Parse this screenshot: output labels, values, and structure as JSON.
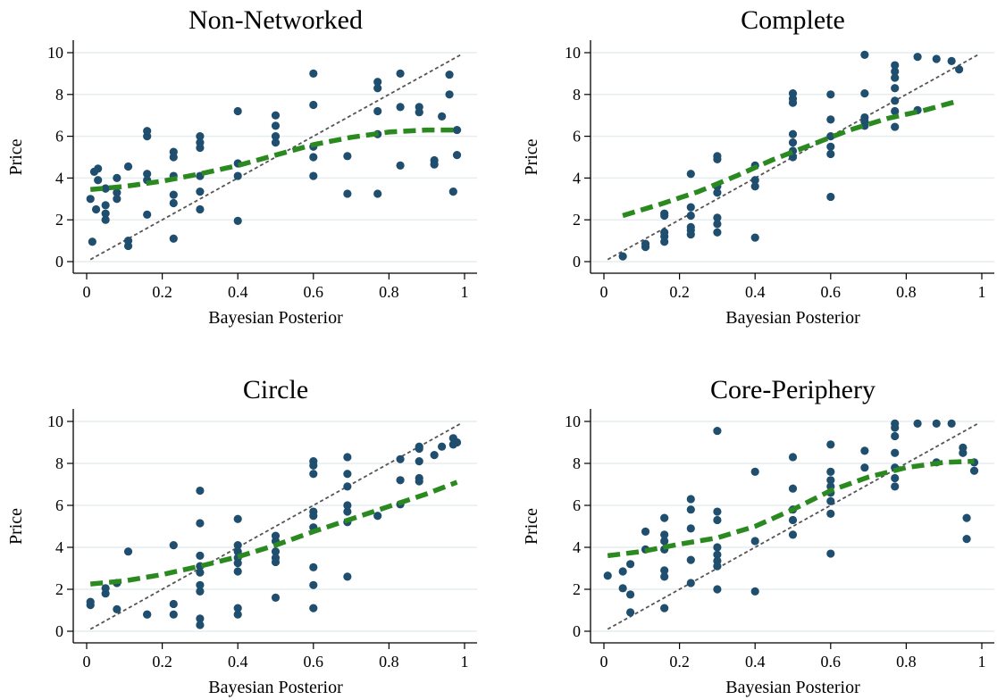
{
  "colors": {
    "points": "#1f4e6e",
    "fit": "#2a8a1f",
    "diagonal": "#555555",
    "grid": "#e6eef0",
    "axis": "#000000"
  },
  "chart_data": [
    {
      "type": "scatter",
      "title": "Non-Networked",
      "xlabel": "Bayesian Posterior",
      "ylabel": "Price",
      "xlim": [
        0,
        1
      ],
      "ylim": [
        0,
        10
      ],
      "xticks": [
        "0",
        "0.2",
        "0.4",
        "0.6",
        "0.8",
        "1"
      ],
      "yticks": [
        "0",
        "2",
        "4",
        "6",
        "8",
        "10"
      ],
      "grid": true,
      "points": [
        [
          0.01,
          3.0
        ],
        [
          0.015,
          0.95
        ],
        [
          0.02,
          4.3
        ],
        [
          0.025,
          2.5
        ],
        [
          0.03,
          4.45
        ],
        [
          0.03,
          3.9
        ],
        [
          0.05,
          2.0
        ],
        [
          0.05,
          2.3
        ],
        [
          0.05,
          2.7
        ],
        [
          0.05,
          3.5
        ],
        [
          0.05,
          3.5
        ],
        [
          0.08,
          3.0
        ],
        [
          0.08,
          3.3
        ],
        [
          0.08,
          4.0
        ],
        [
          0.11,
          0.75
        ],
        [
          0.11,
          1.0
        ],
        [
          0.11,
          4.55
        ],
        [
          0.16,
          6.0
        ],
        [
          0.16,
          6.25
        ],
        [
          0.16,
          4.2
        ],
        [
          0.16,
          3.9
        ],
        [
          0.16,
          2.25
        ],
        [
          0.23,
          5.0
        ],
        [
          0.23,
          5.25
        ],
        [
          0.23,
          4.1
        ],
        [
          0.23,
          3.2
        ],
        [
          0.23,
          2.8
        ],
        [
          0.23,
          1.1
        ],
        [
          0.3,
          6.0
        ],
        [
          0.3,
          5.7
        ],
        [
          0.3,
          5.45
        ],
        [
          0.3,
          4.1
        ],
        [
          0.3,
          3.35
        ],
        [
          0.3,
          2.5
        ],
        [
          0.4,
          7.2
        ],
        [
          0.4,
          4.7
        ],
        [
          0.4,
          4.1
        ],
        [
          0.4,
          1.95
        ],
        [
          0.5,
          7.0
        ],
        [
          0.5,
          6.5
        ],
        [
          0.5,
          6.0
        ],
        [
          0.5,
          5.7
        ],
        [
          0.6,
          9.0
        ],
        [
          0.6,
          7.5
        ],
        [
          0.6,
          5.5
        ],
        [
          0.6,
          5.0
        ],
        [
          0.6,
          4.1
        ],
        [
          0.69,
          5.05
        ],
        [
          0.69,
          3.25
        ],
        [
          0.77,
          8.6
        ],
        [
          0.77,
          8.3
        ],
        [
          0.77,
          7.2
        ],
        [
          0.77,
          6.1
        ],
        [
          0.77,
          3.25
        ],
        [
          0.83,
          9.0
        ],
        [
          0.83,
          7.4
        ],
        [
          0.83,
          4.6
        ],
        [
          0.88,
          7.4
        ],
        [
          0.88,
          7.15
        ],
        [
          0.92,
          4.85
        ],
        [
          0.92,
          4.65
        ],
        [
          0.94,
          6.95
        ],
        [
          0.96,
          8.95
        ],
        [
          0.96,
          8.0
        ],
        [
          0.97,
          3.35
        ],
        [
          0.98,
          6.3
        ],
        [
          0.98,
          5.1
        ]
      ],
      "fit": [
        [
          0.01,
          3.45
        ],
        [
          0.1,
          3.6
        ],
        [
          0.2,
          3.85
        ],
        [
          0.3,
          4.2
        ],
        [
          0.4,
          4.6
        ],
        [
          0.5,
          5.1
        ],
        [
          0.6,
          5.6
        ],
        [
          0.7,
          5.95
        ],
        [
          0.8,
          6.2
        ],
        [
          0.9,
          6.3
        ],
        [
          0.98,
          6.3
        ]
      ],
      "diagonal": [
        [
          0.01,
          0.1
        ],
        [
          0.99,
          9.9
        ]
      ]
    },
    {
      "type": "scatter",
      "title": "Complete",
      "xlabel": "Bayesian Posterior",
      "ylabel": "Price",
      "xlim": [
        0,
        1
      ],
      "ylim": [
        0,
        10
      ],
      "xticks": [
        "0",
        "0.2",
        "0.4",
        "0.6",
        "0.8",
        "1"
      ],
      "yticks": [
        "0",
        "2",
        "4",
        "6",
        "8",
        "10"
      ],
      "grid": true,
      "points": [
        [
          0.05,
          0.25
        ],
        [
          0.11,
          0.7
        ],
        [
          0.11,
          0.85
        ],
        [
          0.16,
          0.95
        ],
        [
          0.16,
          1.2
        ],
        [
          0.16,
          1.4
        ],
        [
          0.16,
          2.2
        ],
        [
          0.16,
          2.3
        ],
        [
          0.23,
          1.3
        ],
        [
          0.23,
          1.5
        ],
        [
          0.23,
          1.65
        ],
        [
          0.23,
          2.2
        ],
        [
          0.23,
          2.6
        ],
        [
          0.23,
          4.2
        ],
        [
          0.3,
          1.4
        ],
        [
          0.3,
          1.8
        ],
        [
          0.3,
          2.1
        ],
        [
          0.3,
          3.3
        ],
        [
          0.3,
          3.6
        ],
        [
          0.3,
          4.9
        ],
        [
          0.3,
          5.05
        ],
        [
          0.4,
          1.15
        ],
        [
          0.4,
          3.6
        ],
        [
          0.4,
          3.9
        ],
        [
          0.4,
          4.6
        ],
        [
          0.5,
          8.05
        ],
        [
          0.5,
          7.8
        ],
        [
          0.5,
          7.6
        ],
        [
          0.5,
          6.1
        ],
        [
          0.5,
          5.7
        ],
        [
          0.5,
          5.3
        ],
        [
          0.5,
          5.0
        ],
        [
          0.6,
          8.0
        ],
        [
          0.6,
          6.8
        ],
        [
          0.6,
          6.0
        ],
        [
          0.6,
          5.5
        ],
        [
          0.6,
          5.15
        ],
        [
          0.6,
          3.1
        ],
        [
          0.69,
          9.9
        ],
        [
          0.69,
          8.05
        ],
        [
          0.69,
          6.9
        ],
        [
          0.69,
          6.7
        ],
        [
          0.69,
          6.5
        ],
        [
          0.77,
          9.4
        ],
        [
          0.77,
          9.1
        ],
        [
          0.77,
          8.8
        ],
        [
          0.77,
          8.3
        ],
        [
          0.77,
          7.7
        ],
        [
          0.77,
          7.2
        ],
        [
          0.77,
          6.45
        ],
        [
          0.83,
          9.8
        ],
        [
          0.83,
          7.25
        ],
        [
          0.88,
          9.7
        ],
        [
          0.92,
          9.6
        ],
        [
          0.94,
          9.2
        ]
      ],
      "fit": [
        [
          0.05,
          2.2
        ],
        [
          0.15,
          2.75
        ],
        [
          0.25,
          3.35
        ],
        [
          0.35,
          4.1
        ],
        [
          0.45,
          4.9
        ],
        [
          0.55,
          5.6
        ],
        [
          0.65,
          6.3
        ],
        [
          0.75,
          6.85
        ],
        [
          0.85,
          7.25
        ],
        [
          0.94,
          7.7
        ]
      ],
      "diagonal": [
        [
          0.01,
          0.1
        ],
        [
          0.99,
          9.9
        ]
      ]
    },
    {
      "type": "scatter",
      "title": "Circle",
      "xlabel": "Bayesian Posterior",
      "ylabel": "Price",
      "xlim": [
        0,
        1
      ],
      "ylim": [
        0,
        10
      ],
      "xticks": [
        "0",
        "0.2",
        "0.4",
        "0.6",
        "0.8",
        "1"
      ],
      "yticks": [
        "0",
        "2",
        "4",
        "6",
        "8",
        "10"
      ],
      "grid": true,
      "points": [
        [
          0.01,
          1.4
        ],
        [
          0.01,
          1.25
        ],
        [
          0.05,
          1.8
        ],
        [
          0.05,
          2.05
        ],
        [
          0.08,
          1.05
        ],
        [
          0.08,
          2.3
        ],
        [
          0.11,
          3.8
        ],
        [
          0.16,
          0.8
        ],
        [
          0.16,
          0.8
        ],
        [
          0.23,
          4.1
        ],
        [
          0.23,
          1.3
        ],
        [
          0.23,
          0.8
        ],
        [
          0.3,
          6.7
        ],
        [
          0.3,
          5.15
        ],
        [
          0.3,
          3.6
        ],
        [
          0.3,
          3.1
        ],
        [
          0.3,
          2.8
        ],
        [
          0.3,
          2.2
        ],
        [
          0.3,
          1.9
        ],
        [
          0.3,
          0.6
        ],
        [
          0.3,
          0.3
        ],
        [
          0.4,
          5.35
        ],
        [
          0.4,
          4.1
        ],
        [
          0.4,
          3.8
        ],
        [
          0.4,
          3.5
        ],
        [
          0.4,
          3.25
        ],
        [
          0.4,
          2.85
        ],
        [
          0.4,
          1.1
        ],
        [
          0.4,
          0.8
        ],
        [
          0.5,
          4.55
        ],
        [
          0.5,
          4.3
        ],
        [
          0.5,
          3.8
        ],
        [
          0.5,
          3.5
        ],
        [
          0.5,
          3.3
        ],
        [
          0.5,
          1.6
        ],
        [
          0.6,
          8.1
        ],
        [
          0.6,
          7.9
        ],
        [
          0.6,
          7.5
        ],
        [
          0.6,
          5.7
        ],
        [
          0.6,
          5.5
        ],
        [
          0.6,
          4.95
        ],
        [
          0.6,
          3.05
        ],
        [
          0.6,
          2.2
        ],
        [
          0.6,
          1.1
        ],
        [
          0.69,
          8.3
        ],
        [
          0.69,
          7.5
        ],
        [
          0.69,
          6.9
        ],
        [
          0.69,
          6.0
        ],
        [
          0.69,
          5.7
        ],
        [
          0.69,
          5.2
        ],
        [
          0.69,
          2.6
        ],
        [
          0.77,
          5.5
        ],
        [
          0.83,
          8.2
        ],
        [
          0.83,
          7.2
        ],
        [
          0.83,
          6.05
        ],
        [
          0.88,
          8.8
        ],
        [
          0.88,
          8.7
        ],
        [
          0.88,
          8.1
        ],
        [
          0.88,
          7.3
        ],
        [
          0.88,
          7.15
        ],
        [
          0.92,
          8.4
        ],
        [
          0.94,
          8.8
        ],
        [
          0.97,
          9.2
        ],
        [
          0.97,
          8.9
        ],
        [
          0.98,
          9.0
        ]
      ],
      "fit": [
        [
          0.01,
          2.25
        ],
        [
          0.1,
          2.4
        ],
        [
          0.2,
          2.7
        ],
        [
          0.3,
          3.1
        ],
        [
          0.4,
          3.55
        ],
        [
          0.5,
          4.1
        ],
        [
          0.6,
          4.75
        ],
        [
          0.7,
          5.35
        ],
        [
          0.8,
          5.95
        ],
        [
          0.9,
          6.55
        ],
        [
          0.98,
          7.1
        ]
      ],
      "diagonal": [
        [
          0.01,
          0.1
        ],
        [
          0.99,
          9.9
        ]
      ]
    },
    {
      "type": "scatter",
      "title": "Core-Periphery",
      "xlabel": "Bayesian Posterior",
      "ylabel": "Price",
      "xlim": [
        0,
        1
      ],
      "ylim": [
        0,
        10
      ],
      "xticks": [
        "0",
        "0.2",
        "0.4",
        "0.6",
        "0.8",
        "1"
      ],
      "yticks": [
        "0",
        "2",
        "4",
        "6",
        "8",
        "10"
      ],
      "grid": true,
      "points": [
        [
          0.01,
          2.65
        ],
        [
          0.05,
          2.05
        ],
        [
          0.05,
          2.85
        ],
        [
          0.07,
          3.2
        ],
        [
          0.07,
          1.75
        ],
        [
          0.07,
          0.9
        ],
        [
          0.11,
          4.75
        ],
        [
          0.11,
          3.9
        ],
        [
          0.16,
          5.4
        ],
        [
          0.16,
          4.6
        ],
        [
          0.16,
          4.3
        ],
        [
          0.16,
          3.9
        ],
        [
          0.16,
          2.9
        ],
        [
          0.16,
          2.6
        ],
        [
          0.16,
          1.1
        ],
        [
          0.23,
          6.3
        ],
        [
          0.23,
          5.8
        ],
        [
          0.23,
          4.9
        ],
        [
          0.23,
          3.4
        ],
        [
          0.23,
          2.3
        ],
        [
          0.3,
          9.55
        ],
        [
          0.3,
          5.7
        ],
        [
          0.3,
          5.3
        ],
        [
          0.3,
          4.0
        ],
        [
          0.3,
          3.65
        ],
        [
          0.3,
          3.35
        ],
        [
          0.3,
          3.1
        ],
        [
          0.3,
          2.0
        ],
        [
          0.4,
          7.6
        ],
        [
          0.4,
          4.3
        ],
        [
          0.4,
          1.9
        ],
        [
          0.5,
          8.3
        ],
        [
          0.5,
          6.8
        ],
        [
          0.5,
          5.8
        ],
        [
          0.5,
          5.3
        ],
        [
          0.5,
          4.6
        ],
        [
          0.6,
          8.9
        ],
        [
          0.6,
          7.6
        ],
        [
          0.6,
          7.2
        ],
        [
          0.6,
          6.9
        ],
        [
          0.6,
          6.6
        ],
        [
          0.6,
          6.2
        ],
        [
          0.6,
          5.6
        ],
        [
          0.6,
          3.7
        ],
        [
          0.69,
          8.6
        ],
        [
          0.69,
          7.8
        ],
        [
          0.77,
          9.9
        ],
        [
          0.77,
          9.7
        ],
        [
          0.77,
          9.3
        ],
        [
          0.77,
          8.5
        ],
        [
          0.77,
          7.8
        ],
        [
          0.77,
          7.3
        ],
        [
          0.77,
          6.9
        ],
        [
          0.83,
          9.9
        ],
        [
          0.88,
          9.9
        ],
        [
          0.88,
          8.05
        ],
        [
          0.92,
          9.9
        ],
        [
          0.95,
          8.75
        ],
        [
          0.95,
          8.5
        ],
        [
          0.96,
          5.4
        ],
        [
          0.96,
          4.4
        ],
        [
          0.98,
          8.05
        ],
        [
          0.98,
          7.65
        ]
      ],
      "fit": [
        [
          0.01,
          3.6
        ],
        [
          0.1,
          3.8
        ],
        [
          0.2,
          4.15
        ],
        [
          0.3,
          4.45
        ],
        [
          0.4,
          5.0
        ],
        [
          0.5,
          5.8
        ],
        [
          0.6,
          6.7
        ],
        [
          0.7,
          7.35
        ],
        [
          0.8,
          7.8
        ],
        [
          0.9,
          8.05
        ],
        [
          0.98,
          8.1
        ]
      ],
      "diagonal": [
        [
          0.01,
          0.1
        ],
        [
          0.99,
          9.9
        ]
      ]
    }
  ]
}
